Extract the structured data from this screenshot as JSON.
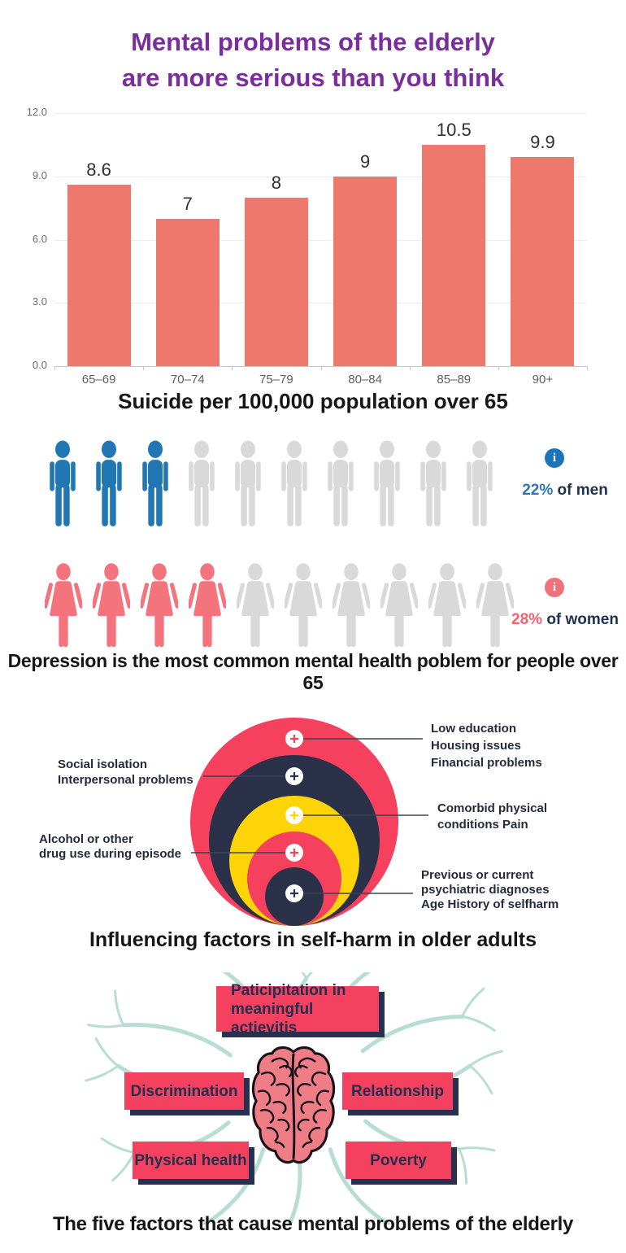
{
  "title": {
    "lines": [
      "Mental problems of the elderly",
      "are more serious than you think"
    ],
    "color": "#7a2d9c"
  },
  "icons": {
    "info": "i",
    "marker": "+"
  },
  "colors": {
    "title_purple": "#7a2d9c",
    "bar_salmon": "#ee786c",
    "ring_red": "#f5405e",
    "ring_navy": "#2b3149",
    "ring_yellow": "#fdd408",
    "man_blue": "#2176b4",
    "woman_pink": "#f4747d",
    "empty_gray": "#d9d9d9",
    "box_red": "#f4415f",
    "box_shadow_navy": "#28304f",
    "branch_teal": "#a7d7ca"
  },
  "chart_data": [
    {
      "id": "suicide",
      "type": "bar",
      "title": "Suicide per 100,000 population over 65",
      "categories": [
        "65–69",
        "70–74",
        "75–79",
        "80–84",
        "85–89",
        "90+"
      ],
      "values": [
        8.6,
        7,
        8,
        9,
        10.5,
        9.9
      ],
      "value_labels": [
        "8.6",
        "7",
        "8",
        "9",
        "10.5",
        "9.9"
      ],
      "xlabel": "",
      "ylabel": "",
      "ylim": [
        0,
        12
      ],
      "yticks": [
        0,
        3,
        6,
        9,
        12
      ],
      "ytick_labels": [
        "0.0",
        "3.0",
        "6.0",
        "9.0",
        "12.0"
      ],
      "grid": true,
      "legend": false,
      "bar_color": "#ee786c"
    },
    {
      "id": "depression",
      "type": "pictograph",
      "caption": "Depression is the most common mental health poblem for people over 65",
      "empty_color": "#d9d9d9",
      "suffix_color": "#1e3152",
      "series": [
        {
          "name": "men",
          "total": 10,
          "filled": 3,
          "percent": 22,
          "percent_label": "22%",
          "suffix": "of men",
          "color": "#2176b4",
          "percent_color": "#2e75b6",
          "info_color": "#1b75bb"
        },
        {
          "name": "women",
          "total": 10,
          "filled": 4,
          "percent": 28,
          "percent_label": "28%",
          "suffix": "of women",
          "color": "#f4747d",
          "percent_color": "#f2646f",
          "info_color": "#f2707a"
        }
      ]
    },
    {
      "id": "selfharm",
      "type": "concentric-circles",
      "title": "Influencing factors in self-harm in older adults",
      "rings": [
        {
          "r": 128,
          "color": "#f5405e",
          "side": "right",
          "label_lines": [
            "Low education",
            "Housing issues",
            "Financial problems"
          ]
        },
        {
          "r": 105,
          "color": "#2b3149",
          "side": "left",
          "label_lines": [
            "Social isolation",
            "Interpersonal problems"
          ]
        },
        {
          "r": 80,
          "color": "#fdd408",
          "side": "right",
          "label_lines": [
            "Comorbid physical",
            "conditions Pain"
          ]
        },
        {
          "r": 58,
          "color": "#f5405e",
          "side": "left",
          "label_lines": [
            "Alcohol or other",
            "drug use during episode"
          ]
        },
        {
          "r": 36,
          "color": "#2b3149",
          "side": "right",
          "label_lines": [
            "Previous or current",
            "psychiatric diagnoses",
            "Age History of selfharm"
          ]
        }
      ]
    },
    {
      "id": "factors",
      "type": "mindmap",
      "title": "The five factors that cause mental problems of the elderly",
      "center": "brain",
      "nodes": [
        {
          "position": "top",
          "label_lines": [
            "Paticipitation in",
            "meaningful actievitis"
          ]
        },
        {
          "position": "mid-left",
          "label_lines": [
            "Discrimination"
          ]
        },
        {
          "position": "mid-right",
          "label_lines": [
            "Relationship"
          ]
        },
        {
          "position": "bottom-left",
          "label_lines": [
            "Physical health"
          ]
        },
        {
          "position": "bottom-right",
          "label_lines": [
            "Poverty"
          ]
        }
      ]
    }
  ]
}
